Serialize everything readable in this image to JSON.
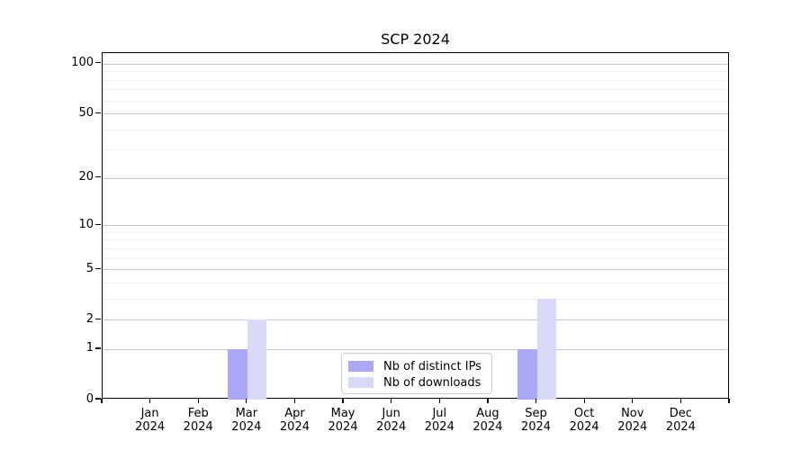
{
  "title": "SCP 2024",
  "chart_data": {
    "type": "bar",
    "title": "SCP 2024",
    "categories": [
      "Jan 2024",
      "Feb 2024",
      "Mar 2024",
      "Apr 2024",
      "May 2024",
      "Jun 2024",
      "Jul 2024",
      "Aug 2024",
      "Sep 2024",
      "Oct 2024",
      "Nov 2024",
      "Dec 2024"
    ],
    "series": [
      {
        "name": "Nb of distinct IPs",
        "color": "#a9a9f8",
        "values": [
          0,
          0,
          1,
          0,
          0,
          0,
          0,
          0,
          1,
          0,
          0,
          0
        ]
      },
      {
        "name": "Nb of downloads",
        "color": "#d9d9f8",
        "values": [
          0,
          0,
          2,
          0,
          0,
          0,
          0,
          0,
          3,
          0,
          0,
          0
        ]
      }
    ],
    "xlabel": "",
    "ylabel": "",
    "yscale": "log1p",
    "ylim": [
      0,
      116
    ],
    "y_major_ticks": [
      0,
      1,
      2,
      5,
      10,
      20,
      50,
      100
    ],
    "y_minor_gridlines": [
      3,
      4,
      6,
      7,
      8,
      9,
      30,
      40,
      60,
      70,
      80,
      90
    ],
    "grid": "horizontal major+minor",
    "legend_position": "lower center inside plot"
  }
}
